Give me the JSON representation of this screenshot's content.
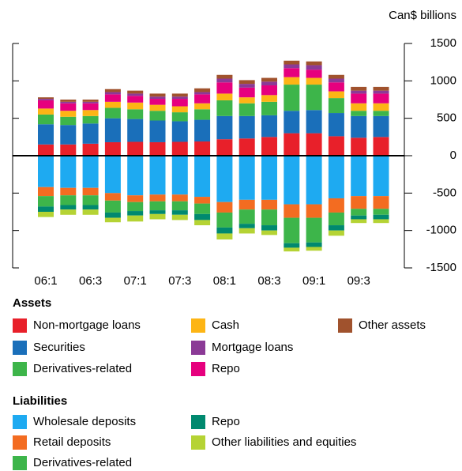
{
  "chart_data": {
    "type": "stacked_bar",
    "y_label": "Can$ billions",
    "categories": [
      "06:1",
      null,
      "06:3",
      null,
      "07:1",
      null,
      "07:3",
      null,
      "08:1",
      null,
      "08:3",
      null,
      "09:1",
      null,
      "09:3",
      null
    ],
    "ylim": [
      -1500,
      1500
    ],
    "yticks": [
      1500,
      1000,
      500,
      0,
      -500,
      -1000,
      -1500
    ],
    "legend_titles": [
      "Assets",
      "Liabilities"
    ],
    "series": [
      {
        "name": "Non-mortgage loans",
        "color": "#e8202a",
        "values": [
          150,
          150,
          160,
          180,
          185,
          180,
          185,
          190,
          220,
          230,
          250,
          300,
          300,
          260,
          240,
          250
        ]
      },
      {
        "name": "Securities",
        "color": "#1a6fba",
        "values": [
          270,
          260,
          270,
          320,
          305,
          290,
          275,
          290,
          310,
          300,
          290,
          300,
          310,
          310,
          290,
          280
        ]
      },
      {
        "name": "Derivatives-related",
        "color": "#3db54a",
        "values": [
          130,
          110,
          100,
          140,
          130,
          130,
          120,
          140,
          210,
          170,
          180,
          350,
          340,
          200,
          70,
          70
        ]
      },
      {
        "name": "Cash",
        "color": "#fdb515",
        "values": [
          80,
          80,
          80,
          80,
          90,
          80,
          80,
          80,
          90,
          80,
          90,
          100,
          90,
          90,
          100,
          100
        ]
      },
      {
        "name": "Repo",
        "color": "#e6007e",
        "values": [
          110,
          100,
          90,
          100,
          90,
          80,
          100,
          120,
          150,
          130,
          130,
          120,
          110,
          120,
          130,
          130
        ]
      },
      {
        "name": "Mortgage loans",
        "color": "#8b3a96",
        "values": [
          20,
          20,
          20,
          30,
          30,
          30,
          30,
          30,
          50,
          50,
          50,
          50,
          60,
          50,
          40,
          40
        ]
      },
      {
        "name": "Other assets",
        "color": "#a0522d",
        "values": [
          20,
          30,
          30,
          40,
          40,
          40,
          40,
          50,
          50,
          50,
          50,
          50,
          50,
          50,
          50,
          50
        ]
      },
      {
        "name": "Wholesale deposits",
        "color": "#1eaaf1",
        "values": [
          -420,
          -430,
          -430,
          -500,
          -530,
          -520,
          -520,
          -550,
          -620,
          -590,
          -590,
          -650,
          -650,
          -570,
          -540,
          -540
        ]
      },
      {
        "name": "Retail deposits",
        "color": "#f36c21",
        "values": [
          -120,
          -100,
          -100,
          -100,
          -90,
          -90,
          -90,
          -90,
          -140,
          -130,
          -130,
          -180,
          -180,
          -190,
          -170,
          -170
        ]
      },
      {
        "name": "Derivatives-related",
        "color": "#3db54a",
        "values": [
          -140,
          -130,
          -130,
          -160,
          -120,
          -120,
          -120,
          -140,
          -200,
          -190,
          -210,
          -340,
          -330,
          -170,
          -90,
          -80
        ]
      },
      {
        "name": "Repo",
        "color": "#00896f",
        "values": [
          -70,
          -60,
          -60,
          -70,
          -60,
          -50,
          -60,
          -80,
          -80,
          -60,
          -70,
          -60,
          -60,
          -70,
          -50,
          -60
        ]
      },
      {
        "name": "Other liabilities and equities",
        "color": "#b5d334",
        "values": [
          -70,
          -70,
          -70,
          -60,
          -80,
          -70,
          -70,
          -70,
          -80,
          -70,
          -60,
          -50,
          -50,
          -70,
          -50,
          -50
        ]
      }
    ]
  }
}
